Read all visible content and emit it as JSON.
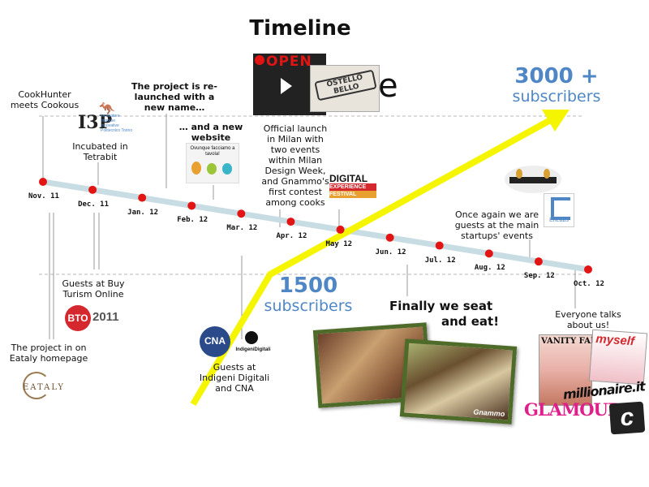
{
  "title": "Timeline",
  "months": [
    "Nov. 11",
    "Dec. 11",
    "Jan. 12",
    "Feb. 12",
    "Mar. 12",
    "Apr. 12",
    "May 12",
    "Jun. 12",
    "Jul. 12",
    "Aug. 12",
    "Sep. 12",
    "Oct. 12"
  ],
  "milestones": {
    "subs_1500_num": "1500",
    "subs_1500_label": "subscribers",
    "subs_3000_num": "3000 +",
    "subs_3000_label": "subscribers"
  },
  "notes": {
    "cookhunter": "CookHunter meets Cookous",
    "incubated": "Incubated in Tetrabit",
    "relaunched": "The project is re-launched with a new name…",
    "website": "… and a new website",
    "launch": "Official launch in Milan with two events within Milan Design Week, and Gnammo's first contest among cooks",
    "guests_main": "Once again we are guests at the main startups' events",
    "bto": "Guests at Buy Turism Online",
    "eataly": "The project in on Eataly homepage",
    "indigeni": "Guests at Indigeni Digitali and CNA",
    "seat_line1": "Finally we seat",
    "seat_line2": "and eat!",
    "everyone": "Everyone talks about us!"
  },
  "logos": {
    "open": "OPEN",
    "ostello": "OSTELLO BELLO",
    "i3p": "I3P",
    "i3p_text": "Incubatore Imprese Innovative Politecnico Torino",
    "website_text": "Ovunque facciamo a tavola!",
    "digital1": "DIGITAL",
    "digital2": "EXPERIENCE",
    "digital3": "FESTIVAL",
    "bto_year": "2011",
    "bto": "BTO",
    "eataly": "EATALY",
    "cna": "CNA",
    "indigeni": "IndigeniDigitali",
    "enlabs": "EnLabs",
    "vanityfair": "VANITY FAIR",
    "myself": "myself",
    "millionaire": "millionaire.it",
    "glamour": "GLAMOUR",
    "c_logo": "c",
    "gnammo": "Gnammo"
  },
  "colors": {
    "timeline": "#c8dde3",
    "dot": "#e31414",
    "arrow": "#f5f500",
    "accent": "#4f86c6"
  }
}
